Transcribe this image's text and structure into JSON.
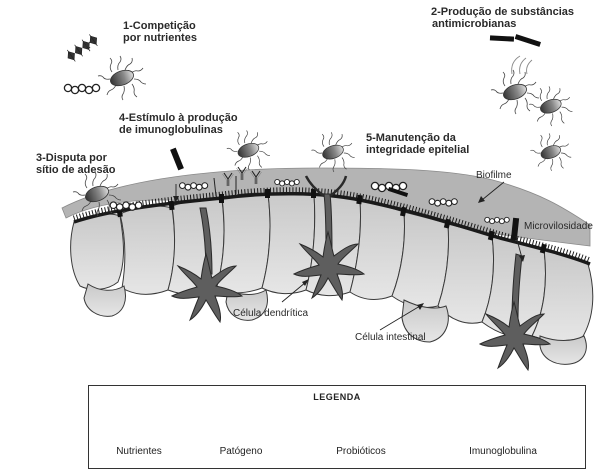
{
  "labels": {
    "l1_line1": "1-Competição",
    "l1_line2": "por nutrientes",
    "l2_line1": "2-Produção de substâncias",
    "l2_line2": "antimicrobianas",
    "l3_line1": "3-Disputa por",
    "l3_line2": "sítio de adesão",
    "l4_line1": "4-Estímulo à produção",
    "l4_line2": "de imunoglobulinas",
    "l5_line1": "5-Manutenção da",
    "l5_line2": "integridade epitelial",
    "biofilme": "Biofilme",
    "microvilosidade": "Microvilosidade",
    "celula_dendritica": "Célula dendrítica",
    "celula_intestinal": "Célula intestinal"
  },
  "legend": {
    "title": "LEGENDA",
    "items": [
      {
        "label": "Nutrientes",
        "icon": "nutrients-icon"
      },
      {
        "label": "Patógeno",
        "icon": "pathogen-icon"
      },
      {
        "label": "Probióticos",
        "icon": "probiotics-icon"
      },
      {
        "label": "Imunoglobulina",
        "icon": "immunoglobulin-icon"
      }
    ]
  },
  "colors": {
    "biofilm": "#b5b5b5",
    "cell": "#d8d8d8",
    "cell_stroke": "#3a3a3a",
    "dendritic": "#555555",
    "dark": "#1a1a1a"
  }
}
